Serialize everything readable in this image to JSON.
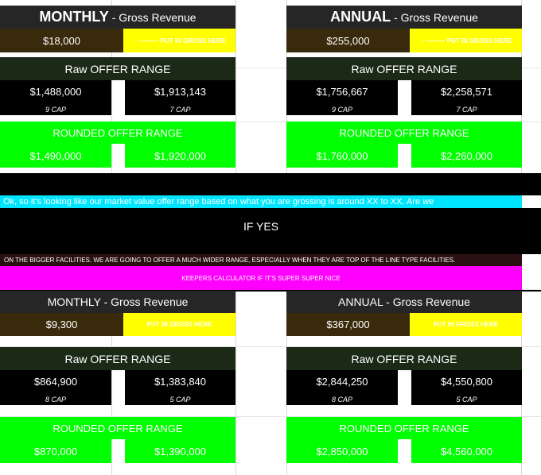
{
  "header_label_monthly": "MONTHLY",
  "header_label_annual": "ANNUAL",
  "header_label_monthly_plain": "MONTHLY - Gross Revenue",
  "header_label_annual_plain": "ANNUAL - Gross Revenue",
  "gross_revenue_suffix": " - Gross Revenue",
  "put_in_gross_arrow": "←——— PUT IN GROSS HERE",
  "put_in_gross": "PUT IN GROSS HERE",
  "raw_offer_range": "Raw OFFER RANGE",
  "rounded_offer_range": "ROUNDED OFFER RANGE",
  "calc1": {
    "monthly": {
      "gross": "$18,000",
      "raw_low": "$1,488,000",
      "raw_high": "$1,913,143",
      "cap_low": "9 CAP",
      "cap_high": "7 CAP",
      "rounded_low": "$1,490,000",
      "rounded_high": "$1,920,000"
    },
    "annual": {
      "gross": "$255,000",
      "raw_low": "$1,756,667",
      "raw_high": "$2,258,571",
      "cap_low": "9 CAP",
      "cap_high": "7 CAP",
      "rounded_low": "$1,760,000",
      "rounded_high": "$2,260,000"
    }
  },
  "script_line": "Ok, so it's looking like our market value offer range based on what you are grossing is around XX to XX. Are we",
  "if_yes": "IF YES",
  "bigger_facilities": "ON THE BIGGER FACILITIES. WE ARE GOING TO OFFER A MUCH WIDER RANGE, ESPECIALLY WHEN THEY ARE TOP OF THE LINE TYPE FACILITIES.",
  "keepers_calc": "KEEPERS CALCULATOR IF IT'S SUPER SUPER NICE",
  "calc2": {
    "monthly": {
      "gross": "$9,300",
      "raw_low": "$864,900",
      "raw_high": "$1,383,840",
      "cap_low": "8 CAP",
      "cap_high": "5 CAP",
      "rounded_low": "$870,000",
      "rounded_high": "$1,390,000"
    },
    "annual": {
      "gross": "$367,000",
      "raw_low": "$2,844,250",
      "raw_high": "$4,550,800",
      "cap_low": "8 CAP",
      "cap_high": "5 CAP",
      "rounded_low": "$2,850,000",
      "rounded_high": "$4,560,000"
    }
  },
  "colors": {
    "header": "#262626",
    "brown": "#3a2a0c",
    "yellow": "#ffff00",
    "dark_green": "#1b2a17",
    "lime": "#00ff00",
    "cyan": "#00e5ff",
    "magenta": "#ff00ff",
    "dark_strip": "#2a1010"
  }
}
